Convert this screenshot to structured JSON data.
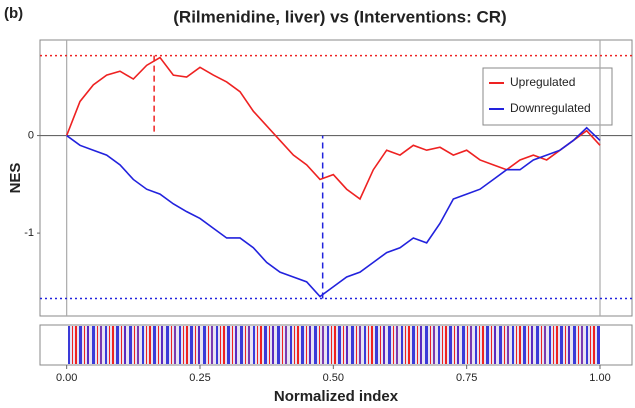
{
  "chart_data": {
    "type": "line",
    "label": "(b)",
    "title": "(Rilmenidine, liver) vs (Interventions: CR)",
    "xlabel": "Normalized index",
    "ylabel": "NES",
    "xlim": [
      -0.05,
      1.06
    ],
    "ylim": [
      -1.85,
      0.98
    ],
    "xticks": [
      {
        "value": 0,
        "label": "0.00"
      },
      {
        "value": 0.25,
        "label": "0.25"
      },
      {
        "value": 0.5,
        "label": "0.50"
      },
      {
        "value": 0.75,
        "label": "0.75"
      },
      {
        "value": 1,
        "label": "1.00"
      }
    ],
    "yticks": [
      0,
      -1
    ],
    "legend": "upper right",
    "x": [
      0,
      0.025,
      0.05,
      0.075,
      0.1,
      0.125,
      0.15,
      0.175,
      0.2,
      0.225,
      0.25,
      0.275,
      0.3,
      0.325,
      0.35,
      0.375,
      0.4,
      0.425,
      0.45,
      0.475,
      0.5,
      0.525,
      0.55,
      0.575,
      0.6,
      0.625,
      0.65,
      0.675,
      0.7,
      0.725,
      0.75,
      0.775,
      0.8,
      0.825,
      0.85,
      0.875,
      0.9,
      0.925,
      0.95,
      0.975,
      1
    ],
    "series": [
      {
        "name": "Upregulated",
        "color": "#ee2222",
        "values": [
          0,
          0.35,
          0.52,
          0.62,
          0.66,
          0.58,
          0.72,
          0.8,
          0.62,
          0.6,
          0.7,
          0.62,
          0.55,
          0.45,
          0.25,
          0.1,
          -0.05,
          -0.2,
          -0.3,
          -0.45,
          -0.4,
          -0.55,
          -0.65,
          -0.35,
          -0.15,
          -0.2,
          -0.1,
          -0.15,
          -0.12,
          -0.2,
          -0.15,
          -0.25,
          -0.3,
          -0.35,
          -0.25,
          -0.2,
          -0.25,
          -0.15,
          -0.05,
          0.05,
          -0.1
        ]
      },
      {
        "name": "Downregulated",
        "color": "#2222dd",
        "values": [
          0,
          -0.1,
          -0.15,
          -0.2,
          -0.3,
          -0.45,
          -0.55,
          -0.6,
          -0.7,
          -0.78,
          -0.85,
          -0.95,
          -1.05,
          -1.05,
          -1.15,
          -1.3,
          -1.4,
          -1.45,
          -1.5,
          -1.65,
          -1.55,
          -1.45,
          -1.4,
          -1.3,
          -1.2,
          -1.15,
          -1.05,
          -1.1,
          -0.9,
          -0.65,
          -0.6,
          -0.55,
          -0.45,
          -0.35,
          -0.35,
          -0.25,
          -0.2,
          -0.15,
          -0.05,
          0.08,
          -0.05
        ]
      }
    ],
    "markers": [
      {
        "x": 0.164,
        "y": 0.82,
        "color": "#ee2222"
      },
      {
        "x": 0.48,
        "y": -1.67,
        "color": "#2222dd"
      }
    ]
  }
}
